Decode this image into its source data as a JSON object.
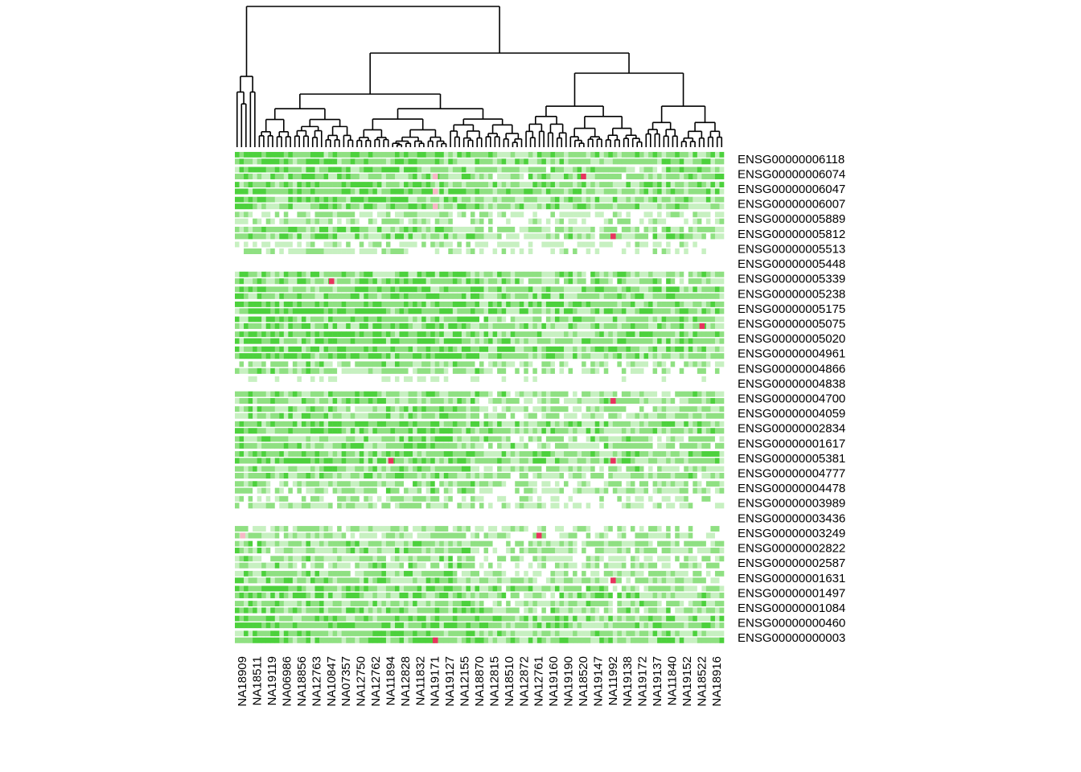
{
  "chart_data": {
    "type": "heatmap",
    "title": "",
    "xlabel": "",
    "ylabel": "",
    "colors": {
      "high": "#4cd13c",
      "mid": "#8fe082",
      "low": "#c7f0c1",
      "blank": "#ffffff",
      "outlier": "#e8335e",
      "outlier_light": "#f7b8c6"
    },
    "row_labels": [
      "ENSG00000006118",
      "ENSG00000006074",
      "ENSG00000006047",
      "ENSG00000006007",
      "ENSG00000005889",
      "ENSG00000005812",
      "ENSG00000005513",
      "ENSG00000005448",
      "ENSG00000005339",
      "ENSG00000005238",
      "ENSG00000005175",
      "ENSG00000005075",
      "ENSG00000005020",
      "ENSG00000004961",
      "ENSG00000004866",
      "ENSG00000004838",
      "ENSG00000004700",
      "ENSG00000004059",
      "ENSG00000002834",
      "ENSG00000001617",
      "ENSG00000005381",
      "ENSG00000004777",
      "ENSG00000004478",
      "ENSG00000003989",
      "ENSG00000003436",
      "ENSG00000003249",
      "ENSG00000002822",
      "ENSG00000002587",
      "ENSG00000001631",
      "ENSG00000001497",
      "ENSG00000001084",
      "ENSG00000000460",
      "ENSG00000000003"
    ],
    "column_labels": [
      "NA18909",
      "NA18511",
      "NA19119",
      "NA06986",
      "NA18856",
      "NA12763",
      "NA10847",
      "NA07357",
      "NA12750",
      "NA12762",
      "NA11894",
      "NA12828",
      "NA11832",
      "NA19171",
      "NA19127",
      "NA12155",
      "NA18870",
      "NA12815",
      "NA18510",
      "NA12872",
      "NA12761",
      "NA19160",
      "NA19190",
      "NA18520",
      "NA19147",
      "NA11992",
      "NA19138",
      "NA19172",
      "NA19137",
      "NA11840",
      "NA19152",
      "NA18522",
      "NA18916"
    ],
    "row_levels": [
      0.6,
      0.55,
      0.6,
      0.58,
      0.3,
      0.5,
      0.25,
      0.0,
      0.55,
      0.6,
      0.65,
      0.55,
      0.6,
      0.62,
      0.4,
      0.05,
      0.5,
      0.45,
      0.6,
      0.5,
      0.6,
      0.5,
      0.4,
      0.3,
      0.02,
      0.35,
      0.45,
      0.4,
      0.45,
      0.55,
      0.5,
      0.6,
      0.6
    ],
    "outliers": [
      {
        "row": "ENSG00000006074",
        "column": "NA18520",
        "level": "high"
      },
      {
        "row": "ENSG00000006074",
        "column": "NA19171",
        "level": "light"
      },
      {
        "row": "ENSG00000006047",
        "column": "NA19171",
        "level": "light"
      },
      {
        "row": "ENSG00000006007",
        "column": "NA19171",
        "level": "light"
      },
      {
        "row": "ENSG00000005812",
        "column": "NA11992",
        "level": "high"
      },
      {
        "row": "ENSG00000005339",
        "column": "NA10847",
        "level": "high"
      },
      {
        "row": "ENSG00000005075",
        "column": "NA18522",
        "level": "high"
      },
      {
        "row": "ENSG00000004700",
        "column": "NA11992",
        "level": "high"
      },
      {
        "row": "ENSG00000005381",
        "column": "NA11992",
        "level": "high"
      },
      {
        "row": "ENSG00000005381",
        "column": "NA11894",
        "level": "high"
      },
      {
        "row": "ENSG00000003249",
        "column": "NA12761",
        "level": "high"
      },
      {
        "row": "ENSG00000001631",
        "column": "NA11992",
        "level": "high"
      },
      {
        "row": "ENSG00000000003",
        "column": "NA19171",
        "level": "high"
      },
      {
        "row": "ENSG00000003249",
        "column": "NA18909",
        "level": "light"
      }
    ],
    "column_dendrogram": "hierarchical clustering tree drawn above columns",
    "legend": "none",
    "grid": false
  }
}
